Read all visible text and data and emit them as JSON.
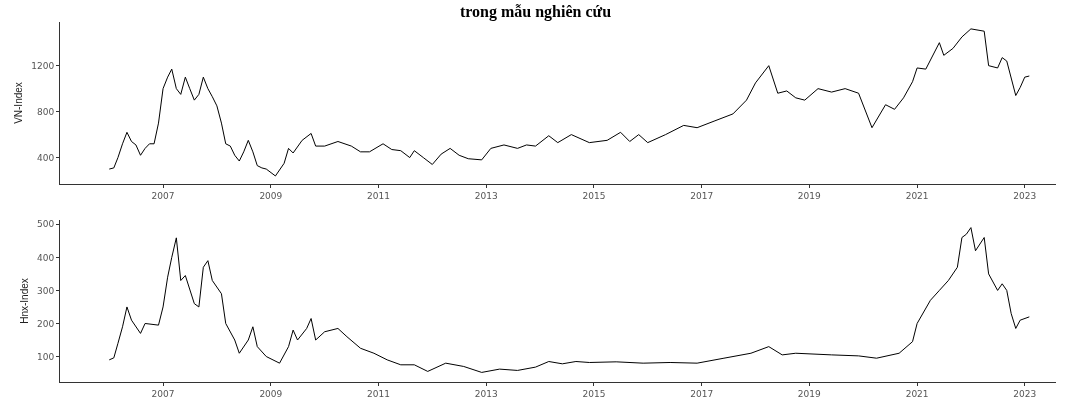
{
  "chart_data": [
    {
      "type": "line",
      "title": "trong mẫu nghiên cứu",
      "ylabel": "VN-Index",
      "xlim": [
        "2005-02",
        "2023-08"
      ],
      "xticks": [
        "2007",
        "2009",
        "2011",
        "2013",
        "2015",
        "2017",
        "2019",
        "2021",
        "2023"
      ],
      "ylim": [
        170,
        1580
      ],
      "yticks": [
        400,
        800,
        1200
      ],
      "line_style": "solid",
      "marker": "none",
      "x": [
        "2006-01",
        "2006-02",
        "2006-03",
        "2006-04",
        "2006-05",
        "2006-06",
        "2006-07",
        "2006-08",
        "2006-09",
        "2006-10",
        "2006-11",
        "2006-12",
        "2007-01",
        "2007-02",
        "2007-03",
        "2007-04",
        "2007-05",
        "2007-06",
        "2007-07",
        "2007-08",
        "2007-09",
        "2007-10",
        "2007-11",
        "2007-12",
        "2008-01",
        "2008-02",
        "2008-03",
        "2008-04",
        "2008-05",
        "2008-06",
        "2008-07",
        "2008-08",
        "2008-09",
        "2008-10",
        "2008-11",
        "2008-12",
        "2009-02",
        "2009-04",
        "2009-05",
        "2009-06",
        "2009-08",
        "2009-10",
        "2009-11",
        "2010-01",
        "2010-04",
        "2010-07",
        "2010-09",
        "2010-11",
        "2011-02",
        "2011-04",
        "2011-06",
        "2011-08",
        "2011-09",
        "2011-11",
        "2012-01",
        "2012-03",
        "2012-05",
        "2012-07",
        "2012-09",
        "2012-12",
        "2013-02",
        "2013-05",
        "2013-08",
        "2013-10",
        "2013-12",
        "2014-03",
        "2014-05",
        "2014-08",
        "2014-12",
        "2015-04",
        "2015-07",
        "2015-09",
        "2015-11",
        "2016-01",
        "2016-05",
        "2016-09",
        "2016-12",
        "2017-04",
        "2017-08",
        "2017-11",
        "2018-01",
        "2018-04",
        "2018-06",
        "2018-08",
        "2018-10",
        "2018-12",
        "2019-03",
        "2019-06",
        "2019-09",
        "2019-12",
        "2020-03",
        "2020-06",
        "2020-08",
        "2020-10",
        "2020-12",
        "2021-01",
        "2021-03",
        "2021-06",
        "2021-07",
        "2021-09",
        "2021-11",
        "2022-01",
        "2022-04",
        "2022-05",
        "2022-07",
        "2022-08",
        "2022-09",
        "2022-11",
        "2022-12",
        "2023-01",
        "2023-02"
      ],
      "series": [
        {
          "color": "#000000",
          "values": [
            300,
            310,
            400,
            520,
            620,
            540,
            510,
            420,
            480,
            520,
            520,
            700,
            1000,
            1100,
            1170,
            1000,
            950,
            1100,
            1000,
            900,
            950,
            1100,
            1000,
            930,
            850,
            700,
            520,
            500,
            420,
            370,
            450,
            550,
            450,
            330,
            310,
            300,
            240,
            350,
            480,
            440,
            550,
            610,
            500,
            500,
            540,
            500,
            450,
            450,
            520,
            470,
            460,
            400,
            460,
            400,
            340,
            430,
            480,
            420,
            390,
            380,
            480,
            510,
            480,
            510,
            500,
            590,
            530,
            600,
            530,
            550,
            620,
            540,
            600,
            530,
            600,
            680,
            660,
            720,
            780,
            900,
            1050,
            1200,
            960,
            980,
            920,
            900,
            1000,
            970,
            1000,
            960,
            660,
            860,
            820,
            920,
            1060,
            1180,
            1170,
            1400,
            1290,
            1350,
            1450,
            1520,
            1500,
            1200,
            1180,
            1270,
            1240,
            940,
            1010,
            1100,
            1110
          ]
        }
      ]
    },
    {
      "type": "line",
      "ylabel": "Hnx-Index",
      "xlim": [
        "2005-02",
        "2023-08"
      ],
      "xticks": [
        "2007",
        "2009",
        "2011",
        "2013",
        "2015",
        "2017",
        "2019",
        "2021",
        "2023"
      ],
      "ylim": [
        23,
        513
      ],
      "yticks": [
        100,
        200,
        300,
        400,
        500
      ],
      "line_style": "solid",
      "marker": "none",
      "x": [
        "2006-01",
        "2006-02",
        "2006-03",
        "2006-04",
        "2006-05",
        "2006-06",
        "2006-08",
        "2006-09",
        "2006-12",
        "2007-01",
        "2007-02",
        "2007-03",
        "2007-04",
        "2007-05",
        "2007-06",
        "2007-08",
        "2007-09",
        "2007-10",
        "2007-11",
        "2007-12",
        "2008-02",
        "2008-03",
        "2008-05",
        "2008-06",
        "2008-08",
        "2008-09",
        "2008-10",
        "2008-12",
        "2009-03",
        "2009-05",
        "2009-06",
        "2009-07",
        "2009-09",
        "2009-10",
        "2009-11",
        "2010-01",
        "2010-04",
        "2010-06",
        "2010-09",
        "2010-12",
        "2011-03",
        "2011-06",
        "2011-09",
        "2011-12",
        "2012-04",
        "2012-08",
        "2012-12",
        "2013-04",
        "2013-08",
        "2013-12",
        "2014-03",
        "2014-06",
        "2014-09",
        "2014-12",
        "2015-06",
        "2015-12",
        "2016-06",
        "2016-12",
        "2017-06",
        "2017-12",
        "2018-04",
        "2018-07",
        "2018-10",
        "2019-06",
        "2019-12",
        "2020-04",
        "2020-09",
        "2020-12",
        "2021-01",
        "2021-04",
        "2021-06",
        "2021-08",
        "2021-10",
        "2021-11",
        "2021-12",
        "2022-01",
        "2022-02",
        "2022-04",
        "2022-05",
        "2022-07",
        "2022-08",
        "2022-09",
        "2022-10",
        "2022-11",
        "2022-12",
        "2023-02"
      ],
      "series": [
        {
          "color": "#000000",
          "values": [
            90,
            96,
            140,
            190,
            250,
            210,
            170,
            200,
            195,
            250,
            340,
            400,
            459,
            330,
            345,
            260,
            250,
            370,
            390,
            330,
            290,
            200,
            150,
            110,
            150,
            190,
            130,
            100,
            80,
            130,
            180,
            150,
            185,
            215,
            150,
            175,
            185,
            160,
            125,
            110,
            90,
            75,
            75,
            55,
            80,
            70,
            52,
            62,
            58,
            68,
            85,
            78,
            85,
            82,
            84,
            80,
            82,
            80,
            95,
            110,
            130,
            105,
            110,
            105,
            102,
            95,
            110,
            145,
            200,
            270,
            300,
            330,
            370,
            460,
            470,
            490,
            420,
            460,
            350,
            300,
            320,
            300,
            230,
            185,
            210,
            220
          ]
        }
      ]
    }
  ]
}
